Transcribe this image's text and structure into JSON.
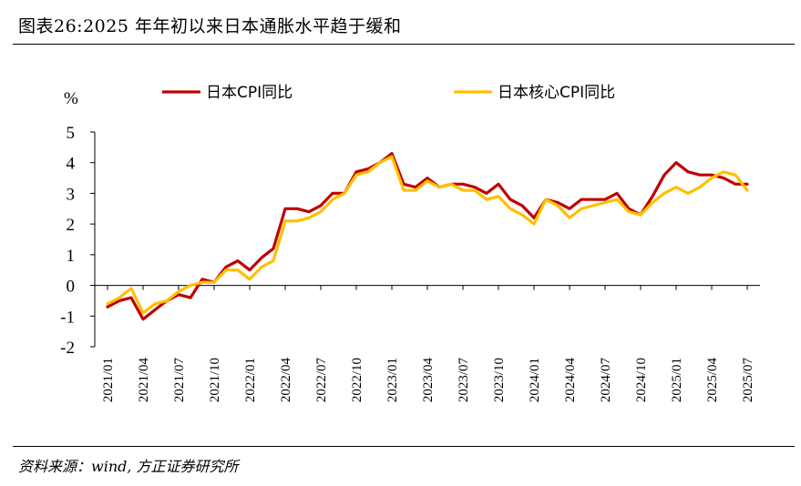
{
  "title": "图表26:2025 年年初以来日本通胀水平趋于缓和",
  "source": "资料来源：wind, 方正证券研究所",
  "chart_data": {
    "type": "line",
    "ylabel": "%",
    "ylim": [
      -2,
      5
    ],
    "yticks": [
      5,
      4,
      3,
      2,
      1,
      0,
      -1,
      -2
    ],
    "x": [
      "2021/01",
      "2021/02",
      "2021/03",
      "2021/04",
      "2021/05",
      "2021/06",
      "2021/07",
      "2021/08",
      "2021/09",
      "2021/10",
      "2021/11",
      "2021/12",
      "2022/01",
      "2022/02",
      "2022/03",
      "2022/04",
      "2022/05",
      "2022/06",
      "2022/07",
      "2022/08",
      "2022/09",
      "2022/10",
      "2022/11",
      "2022/12",
      "2023/01",
      "2023/02",
      "2023/03",
      "2023/04",
      "2023/05",
      "2023/06",
      "2023/07",
      "2023/08",
      "2023/09",
      "2023/10",
      "2023/11",
      "2023/12",
      "2024/01",
      "2024/02",
      "2024/03",
      "2024/04",
      "2024/05",
      "2024/06",
      "2024/07",
      "2024/08",
      "2024/09",
      "2024/10",
      "2024/11",
      "2024/12",
      "2025/01",
      "2025/02",
      "2025/03",
      "2025/04",
      "2025/05",
      "2025/06",
      "2025/07"
    ],
    "xticks": [
      "2021/01",
      "2021/04",
      "2021/07",
      "2021/10",
      "2022/01",
      "2022/04",
      "2022/07",
      "2022/10",
      "2023/01",
      "2023/04",
      "2023/07",
      "2023/10",
      "2024/01",
      "2024/04",
      "2024/07",
      "2024/10",
      "2025/01",
      "2025/04",
      "2025/07"
    ],
    "legend_position": "top",
    "grid": false,
    "series": [
      {
        "name": "日本CPI同比",
        "color": "#C00000",
        "values": [
          -0.7,
          -0.5,
          -0.4,
          -1.1,
          -0.8,
          -0.5,
          -0.3,
          -0.4,
          0.2,
          0.1,
          0.6,
          0.8,
          0.5,
          0.9,
          1.2,
          2.5,
          2.5,
          2.4,
          2.6,
          3.0,
          3.0,
          3.7,
          3.8,
          4.0,
          4.3,
          3.3,
          3.2,
          3.5,
          3.2,
          3.3,
          3.3,
          3.2,
          3.0,
          3.3,
          2.8,
          2.6,
          2.2,
          2.8,
          2.7,
          2.5,
          2.8,
          2.8,
          2.8,
          3.0,
          2.5,
          2.3,
          2.9,
          3.6,
          4.0,
          3.7,
          3.6,
          3.6,
          3.5,
          3.3,
          3.3
        ]
      },
      {
        "name": "日本核心CPI同比",
        "color": "#FFC000",
        "values": [
          -0.6,
          -0.4,
          -0.1,
          -0.9,
          -0.6,
          -0.5,
          -0.2,
          0.0,
          0.1,
          0.1,
          0.5,
          0.5,
          0.2,
          0.6,
          0.8,
          2.1,
          2.1,
          2.2,
          2.4,
          2.8,
          3.0,
          3.6,
          3.7,
          4.0,
          4.2,
          3.1,
          3.1,
          3.4,
          3.2,
          3.3,
          3.1,
          3.1,
          2.8,
          2.9,
          2.5,
          2.3,
          2.0,
          2.8,
          2.6,
          2.2,
          2.5,
          2.6,
          2.7,
          2.8,
          2.4,
          2.3,
          2.7,
          3.0,
          3.2,
          3.0,
          3.2,
          3.5,
          3.7,
          3.6,
          3.1
        ]
      }
    ]
  }
}
